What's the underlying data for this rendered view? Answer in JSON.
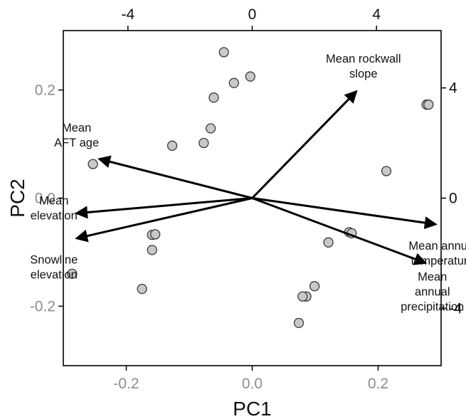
{
  "chart_data": {
    "type": "scatter",
    "subtype": "pca-biplot",
    "xlabel": "PC1",
    "ylabel": "PC2",
    "xlim": [
      -0.3,
      0.3
    ],
    "ylim": [
      -0.31,
      0.31
    ],
    "top_axis_lim": [
      -6.08,
      6.08
    ],
    "right_axis_lim": [
      -6.08,
      6.08
    ],
    "x_ticks": [
      -0.2,
      0.0,
      0.2
    ],
    "x_tick_labels": [
      "-0.2",
      "0.0",
      "0.2"
    ],
    "y_ticks": [
      -0.2,
      0.0,
      0.2
    ],
    "y_tick_labels": [
      "-0.2",
      "0.0",
      "0.2"
    ],
    "top_ticks": [
      -4,
      0,
      4
    ],
    "top_tick_labels": [
      "-4",
      "0",
      "4"
    ],
    "right_ticks": [
      -4,
      0,
      4
    ],
    "right_tick_labels": [
      "-4",
      "0",
      "4"
    ],
    "grid": false,
    "colors": {
      "point_fill": "#c8c8c8",
      "point_stroke": "#3a3a3a",
      "arrow": "#000000",
      "primary_tick_text": "#8c8c8c",
      "secondary_tick_text": "#111111"
    },
    "points": [
      {
        "x": -0.045,
        "y": 0.27
      },
      {
        "x": -0.003,
        "y": 0.225
      },
      {
        "x": -0.029,
        "y": 0.213
      },
      {
        "x": -0.061,
        "y": 0.186
      },
      {
        "x": -0.066,
        "y": 0.129
      },
      {
        "x": -0.077,
        "y": 0.102
      },
      {
        "x": -0.127,
        "y": 0.097
      },
      {
        "x": -0.253,
        "y": 0.063
      },
      {
        "x": 0.277,
        "y": 0.173
      },
      {
        "x": 0.28,
        "y": 0.173
      },
      {
        "x": 0.213,
        "y": 0.05
      },
      {
        "x": 0.154,
        "y": -0.063
      },
      {
        "x": 0.158,
        "y": -0.065
      },
      {
        "x": 0.121,
        "y": -0.082
      },
      {
        "x": -0.159,
        "y": -0.068
      },
      {
        "x": -0.154,
        "y": -0.067
      },
      {
        "x": -0.159,
        "y": -0.096
      },
      {
        "x": -0.286,
        "y": -0.14
      },
      {
        "x": -0.175,
        "y": -0.168
      },
      {
        "x": 0.099,
        "y": -0.163
      },
      {
        "x": 0.086,
        "y": -0.182
      },
      {
        "x": 0.08,
        "y": -0.182
      },
      {
        "x": 0.074,
        "y": -0.231
      }
    ],
    "vectors": [
      {
        "label_lines": [
          "Mean rockwall",
          "slope"
        ],
        "x": 3.35,
        "y": 3.87
      },
      {
        "label_lines": [
          "Mean",
          "AFT age"
        ],
        "x": -4.92,
        "y": 1.42
      },
      {
        "label_lines": [
          "Mean annual",
          "temperature"
        ],
        "x": 5.9,
        "y": -0.95
      },
      {
        "label_lines": [
          "Mean",
          "elevation"
        ],
        "x": -5.65,
        "y": -0.55
      },
      {
        "label_lines": [
          "Snowline",
          "elevation"
        ],
        "x": -5.65,
        "y": -1.46
      },
      {
        "label_lines": [
          "Mean",
          "annual",
          "precipitation"
        ],
        "x": 5.57,
        "y": -2.35
      }
    ]
  }
}
